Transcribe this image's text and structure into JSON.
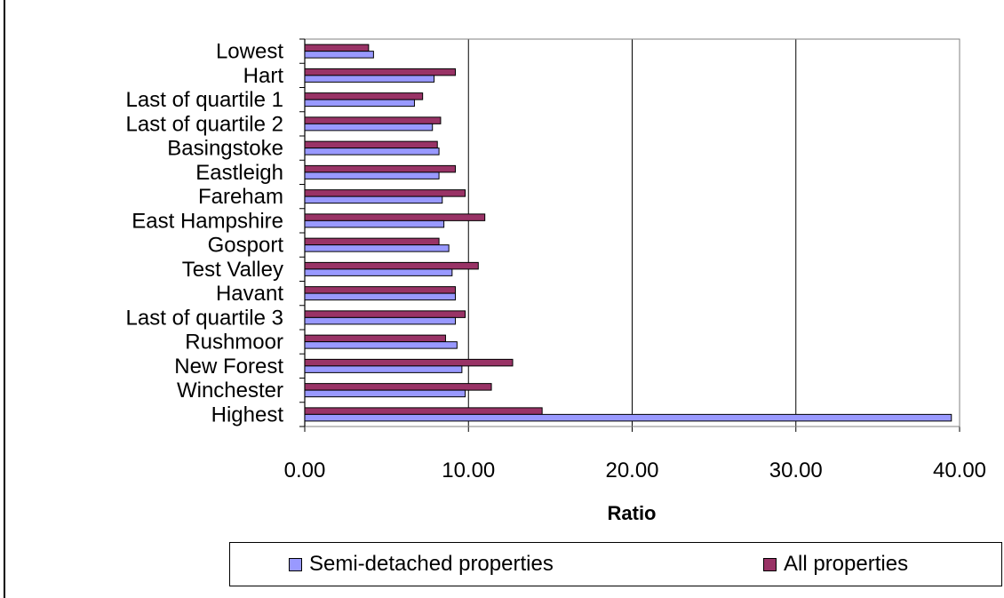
{
  "chart_data": {
    "type": "bar",
    "orientation": "horizontal",
    "title": "",
    "xlabel": "Ratio",
    "ylabel": "",
    "xlim": [
      0,
      40
    ],
    "xticks": [
      "0.00",
      "10.00",
      "20.00",
      "30.00",
      "40.00"
    ],
    "grid": true,
    "legend_position": "bottom",
    "categories": [
      "Lowest",
      "Hart",
      "Last of quartile 1",
      "Last of quartile 2",
      "Basingstoke",
      "Eastleigh",
      "Fareham",
      "East Hampshire",
      "Gosport",
      "Test Valley",
      "Havant",
      "Last of quartile 3",
      "Rushmoor",
      "New Forest",
      "Winchester",
      "Highest"
    ],
    "series": [
      {
        "name": "Semi-detached properties",
        "color": "#9999ff",
        "values": [
          4.2,
          7.9,
          6.7,
          7.8,
          8.2,
          8.2,
          8.4,
          8.5,
          8.8,
          9.0,
          9.2,
          9.2,
          9.3,
          9.6,
          9.8,
          39.5
        ]
      },
      {
        "name": "All properties",
        "color": "#993366",
        "values": [
          3.9,
          9.2,
          7.2,
          8.3,
          8.1,
          9.2,
          9.8,
          11.0,
          8.2,
          10.6,
          9.2,
          9.8,
          8.6,
          12.7,
          11.4,
          14.5
        ]
      }
    ]
  }
}
